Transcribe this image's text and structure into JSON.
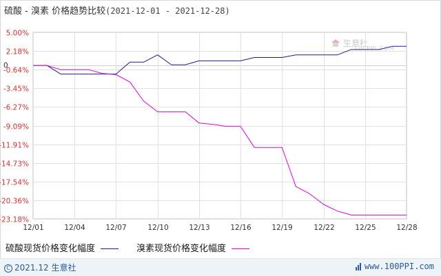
{
  "title": {
    "main": "硫酸 - 溴素  价格趋势比较",
    "range": "(2021-12-01 - 2021-12-28)"
  },
  "watermark": {
    "text": "生意社",
    "sub": "100PPI.COM",
    "icon": "house-icon"
  },
  "chart_data": {
    "type": "line",
    "x": [
      "12/01",
      "12/02",
      "12/03",
      "12/04",
      "12/05",
      "12/06",
      "12/07",
      "12/08",
      "12/09",
      "12/10",
      "12/11",
      "12/12",
      "12/13",
      "12/14",
      "12/15",
      "12/16",
      "12/17",
      "12/18",
      "12/19",
      "12/20",
      "12/21",
      "12/22",
      "12/23",
      "12/24",
      "12/25",
      "12/26",
      "12/27",
      "12/28"
    ],
    "x_tick_labels": [
      "12/01",
      "12/04",
      "12/07",
      "12/10",
      "12/13",
      "12/16",
      "12/19",
      "12/22",
      "12/25",
      "12/28"
    ],
    "y_tick_labels": [
      "5.00%",
      "2.18%",
      "-0.64%",
      "-3.45%",
      "-6.27%",
      "-9.09%",
      "-11.91%",
      "-14.73%",
      "-17.54%",
      "-20.36%",
      "-23.18%"
    ],
    "y_ticks": [
      5.0,
      2.18,
      -0.64,
      -3.45,
      -6.27,
      -9.09,
      -11.91,
      -14.73,
      -17.54,
      -20.36,
      -23.18
    ],
    "zero_label": "0",
    "ylim": [
      -23.18,
      5.0
    ],
    "grid": true,
    "legend_position": "bottom",
    "series": [
      {
        "name": "硫酸现货价格变化幅度",
        "color": "#1a1aa6",
        "values": [
          0,
          0,
          -1.3,
          -1.3,
          -1.3,
          -1.3,
          -1.3,
          0.5,
          0.5,
          1.6,
          0.1,
          0.1,
          0.7,
          0.7,
          0.7,
          0.7,
          1.2,
          1.2,
          1.2,
          1.6,
          1.6,
          1.6,
          1.6,
          2.4,
          2.4,
          2.4,
          2.9,
          2.9
        ]
      },
      {
        "name": "溴素现货价格变化幅度",
        "color": "#e600e6",
        "values": [
          0,
          0,
          -0.64,
          -0.64,
          -0.64,
          -1.2,
          -1.4,
          -2.5,
          -5.4,
          -7.0,
          -7.0,
          -7.0,
          -8.7,
          -8.9,
          -9.2,
          -9.2,
          -12.4,
          -12.4,
          -12.4,
          -18.3,
          -19.4,
          -21.0,
          -22.0,
          -22.6,
          -22.6,
          -22.6,
          -22.6,
          -22.6
        ]
      }
    ]
  },
  "footer": {
    "copyright_icon": "copyright-icon",
    "left": "2021.12 生意社",
    "right": "www.100PPI.com",
    "bars_icon": "bar-chart-icon"
  }
}
